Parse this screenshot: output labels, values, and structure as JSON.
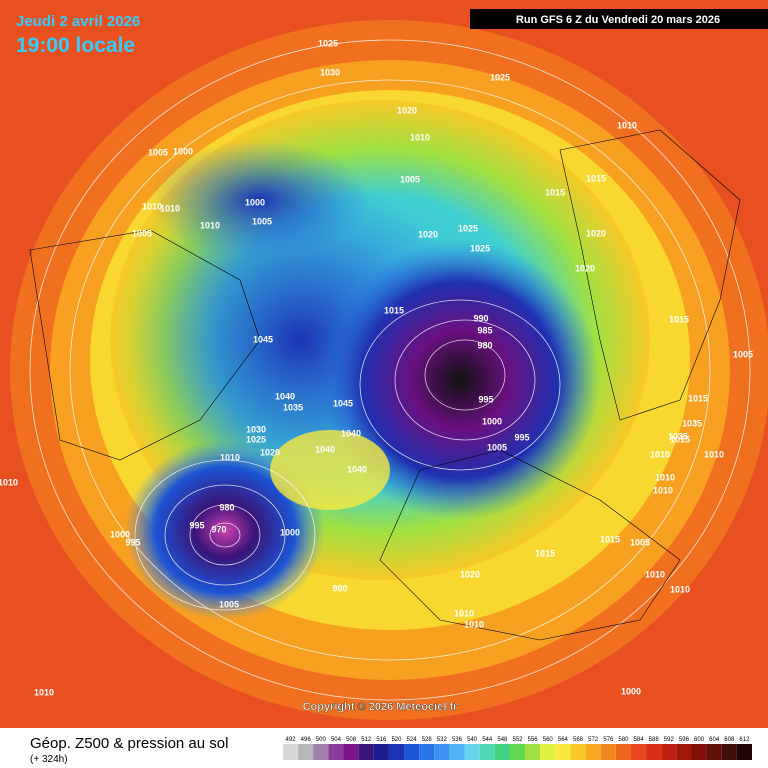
{
  "header": {
    "date": "Jeudi 2 avril 2026",
    "time": "19:00 locale",
    "run": "Run GFS 6 Z du Vendredi 20 mars 2026"
  },
  "copyright": "Copyright © 2026 Meteociel.fr",
  "footer": {
    "title": "Géop. Z500 & pression au sol",
    "subtitle": "(+ 324h)"
  },
  "scale": {
    "values": [
      492,
      496,
      500,
      504,
      508,
      512,
      516,
      520,
      524,
      528,
      532,
      536,
      540,
      544,
      548,
      552,
      556,
      560,
      564,
      568,
      572,
      576,
      580,
      584,
      588,
      592,
      596,
      600,
      604,
      608,
      612
    ],
    "colors": [
      "#d8d8d8",
      "#b8b8b8",
      "#a080a8",
      "#8c3a9a",
      "#7a1488",
      "#3a1478",
      "#1c1c8c",
      "#1c34b4",
      "#1c54d4",
      "#2874e4",
      "#3c94f0",
      "#50b4f4",
      "#64d4e8",
      "#50d8b4",
      "#40d080",
      "#60d850",
      "#a0e040",
      "#e0f040",
      "#f8e840",
      "#f8c828",
      "#f8a820",
      "#f08820",
      "#f06820",
      "#e84820",
      "#d83018",
      "#c02010",
      "#a01808",
      "#801008",
      "#601008",
      "#401008",
      "#200808"
    ]
  },
  "isobars": [
    "1025",
    "1030",
    "1020",
    "1025",
    "1010",
    "1010",
    "1005",
    "1000",
    "1000",
    "1005",
    "1005",
    "1010",
    "1010",
    "1010",
    "1005",
    "1020",
    "1025",
    "1025",
    "1015",
    "1020",
    "1020",
    "1015",
    "990",
    "985",
    "980",
    "995",
    "1000",
    "1005",
    "995",
    "1015",
    "1045",
    "1040",
    "1035",
    "1045",
    "1040",
    "1030",
    "1025",
    "1020",
    "1040",
    "1040",
    "1010",
    "980",
    "970",
    "995",
    "1000",
    "1000",
    "995",
    "990",
    "1005",
    "1015",
    "1015",
    "1020",
    "1010",
    "1010",
    "1015",
    "1015",
    "1010",
    "1010",
    "1005",
    "1010",
    "1010",
    "1005",
    "1000",
    "1010",
    "1015",
    "1010",
    "1010",
    "1010",
    "1035",
    "1035"
  ]
}
